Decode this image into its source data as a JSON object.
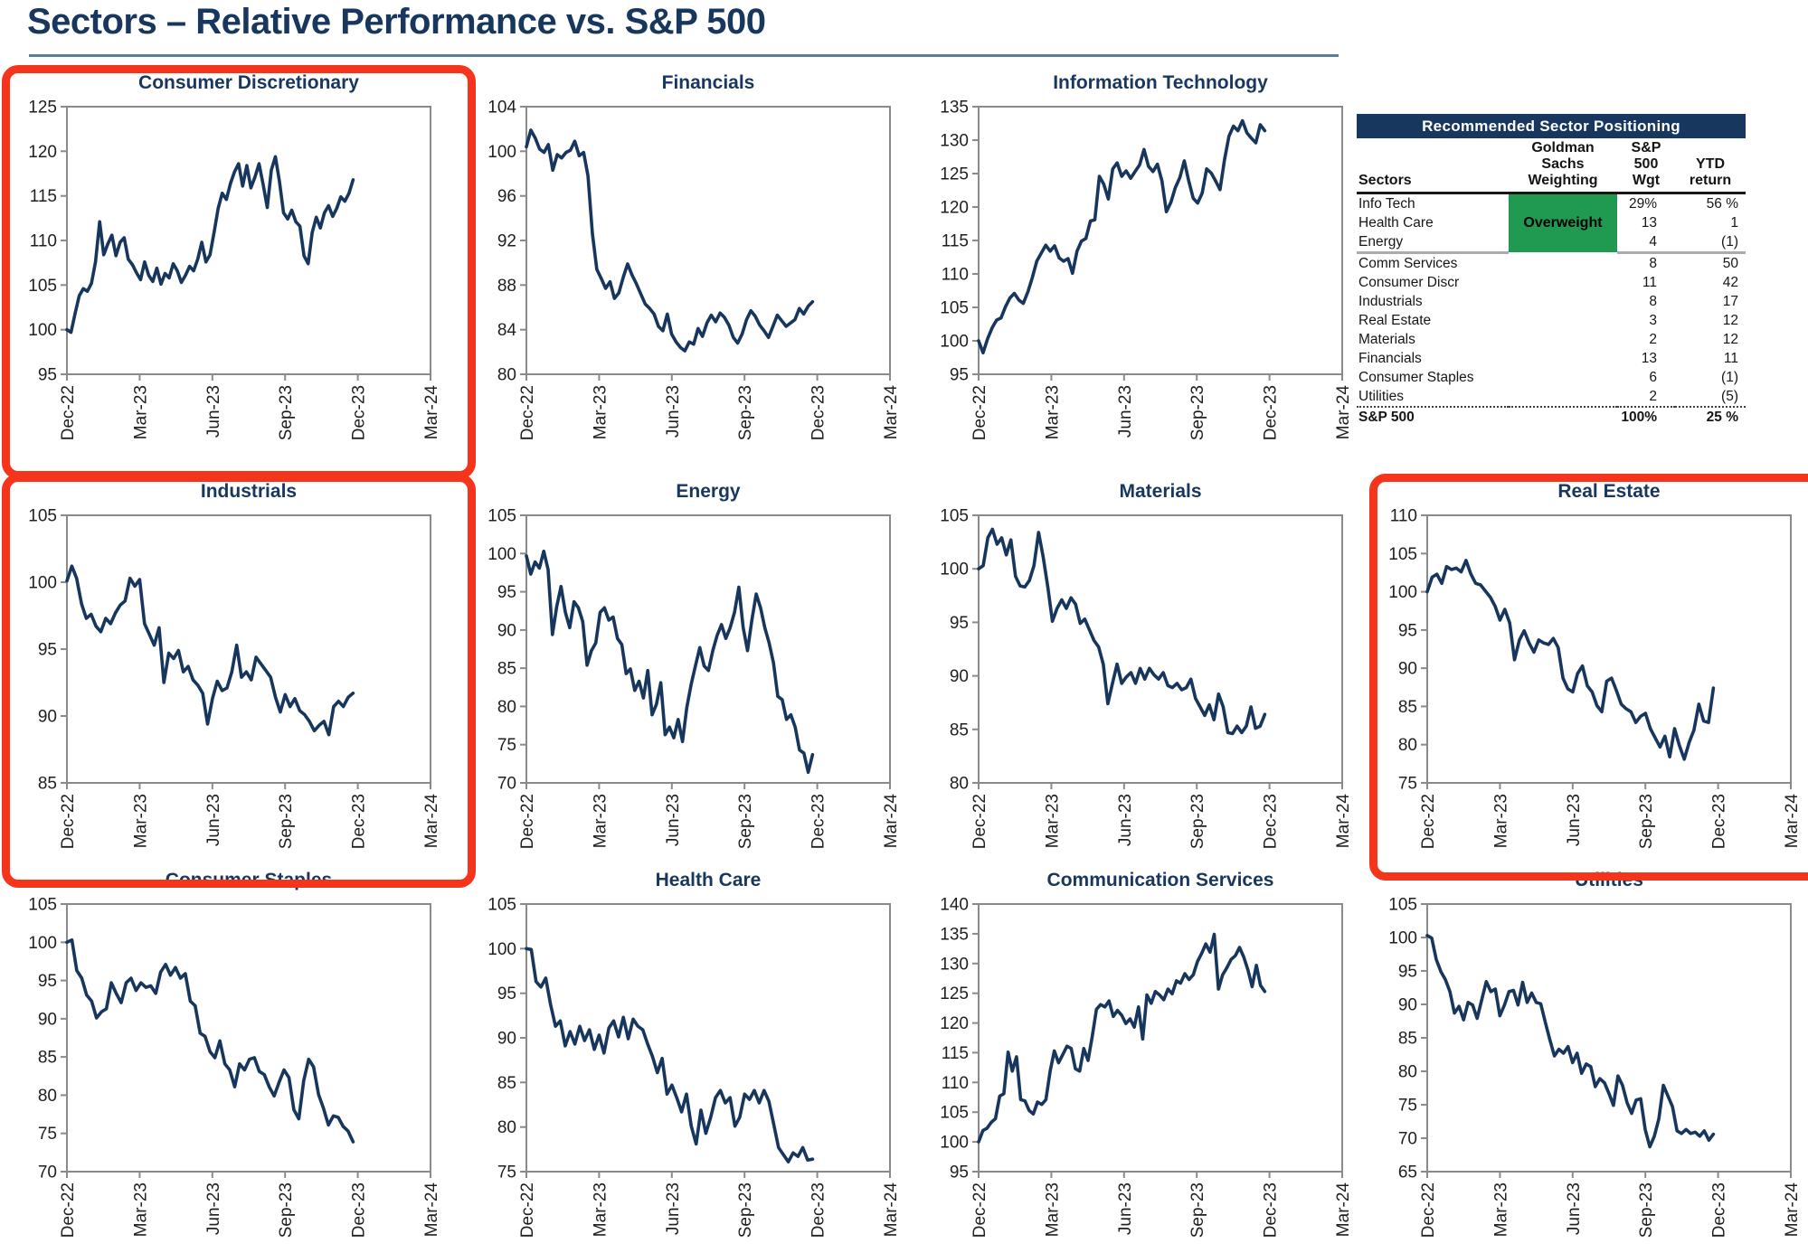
{
  "page": {
    "title": "Sectors – Relative Performance vs. S&P 500"
  },
  "colors": {
    "line": "#17365d",
    "chart_title": "#17375E",
    "axis": "#8a8a8a",
    "tick_label": "#1f1f1f",
    "red_box": "#F5341C",
    "table_header_bg": "#17375E",
    "overweight_green": "#1F9A50"
  },
  "axis": {
    "xticks": [
      "Dec-22",
      "Mar-23",
      "Jun-23",
      "Sep-23",
      "Dec-23",
      "Mar-24"
    ]
  },
  "table": {
    "title": "Recommended Sector Positioning",
    "col_headers": [
      "Sectors",
      "Goldman\nSachs\nWeighting",
      "S&P\n500\nWgt",
      "YTD\nreturn"
    ],
    "overweight_label": "Overweight",
    "rows": [
      {
        "sector": "Info Tech",
        "wgt": "29%",
        "ytd": "56 %"
      },
      {
        "sector": "Health Care",
        "wgt": "13",
        "ytd": "1"
      },
      {
        "sector": "Energy",
        "wgt": "4",
        "ytd": "(1)"
      },
      {
        "sector": "Comm Services",
        "wgt": "8",
        "ytd": "50"
      },
      {
        "sector": "Consumer Discr",
        "wgt": "11",
        "ytd": "42"
      },
      {
        "sector": "Industrials",
        "wgt": "8",
        "ytd": "17"
      },
      {
        "sector": "Real Estate",
        "wgt": "3",
        "ytd": "12"
      },
      {
        "sector": "Materials",
        "wgt": "2",
        "ytd": "12"
      },
      {
        "sector": "Financials",
        "wgt": "13",
        "ytd": "11"
      },
      {
        "sector": "Consumer Staples",
        "wgt": "6",
        "ytd": "(1)"
      },
      {
        "sector": "Utilities",
        "wgt": "2",
        "ytd": "(5)"
      }
    ],
    "footer_row": {
      "sector": "S&P 500",
      "wgt": "100%",
      "ytd": "25 %"
    }
  },
  "chart_data": [
    {
      "type": "line",
      "title": "Consumer Discretionary",
      "highlighted": true,
      "xlim": [
        "Dec-22",
        "Mar-24"
      ],
      "ylim": [
        95,
        125
      ],
      "ystep": 5,
      "x_end": 0.787,
      "values": [
        100,
        99.7,
        101.8,
        103.8,
        104.6,
        104.3,
        105.2,
        107.6,
        112.1,
        108.4,
        109.6,
        110.6,
        108.3,
        109.8,
        110.3,
        107.9,
        107.3,
        106.4,
        105.6,
        107.6,
        106.1,
        105.4,
        106.9,
        105.1,
        106.3,
        105.8,
        107.4,
        106.6,
        105.3,
        106.1,
        107.1,
        106.6,
        107.9,
        109.8,
        107.6,
        108.4,
        110.9,
        113.6,
        115.3,
        114.6,
        116.4,
        117.7,
        118.6,
        116.1,
        118.4,
        115.9,
        117.1,
        118.6,
        116.3,
        113.7,
        117.9,
        119.4,
        116.6,
        113.1,
        112.4,
        113.4,
        112.1,
        111.6,
        108.3,
        107.4,
        110.9,
        112.6,
        111.4,
        113.1,
        113.9,
        112.7,
        113.6,
        114.9,
        114.4,
        115.3,
        116.8
      ]
    },
    {
      "type": "line",
      "title": "Financials",
      "highlighted": false,
      "xlim": [
        "Dec-22",
        "Mar-24"
      ],
      "ylim": [
        80,
        104
      ],
      "ystep": 4,
      "x_end": 0.787,
      "values": [
        100.4,
        101.9,
        101.2,
        100.2,
        99.9,
        100.6,
        98.3,
        99.7,
        99.4,
        99.9,
        100.1,
        100.9,
        99.6,
        99.9,
        97.8,
        92.6,
        89.4,
        88.6,
        87.7,
        88.3,
        86.8,
        87.3,
        88.7,
        89.9,
        88.9,
        88.1,
        87.2,
        86.3,
        85.9,
        85.4,
        84.3,
        83.9,
        85.4,
        83.6,
        82.9,
        82.4,
        82.1,
        82.9,
        82.7,
        84.1,
        83.4,
        84.6,
        85.3,
        84.7,
        85.5,
        85.1,
        84.4,
        83.3,
        82.8,
        83.6,
        84.9,
        85.7,
        85.2,
        84.4,
        83.9,
        83.3,
        84.3,
        85.3,
        84.8,
        84.3,
        84.6,
        84.9,
        85.9,
        85.4,
        86.1,
        86.5
      ]
    },
    {
      "type": "line",
      "title": "Information Technology",
      "highlighted": false,
      "xlim": [
        "Dec-22",
        "Mar-24"
      ],
      "ylim": [
        95,
        135
      ],
      "ystep": 5,
      "x_end": 0.787,
      "values": [
        100,
        98.2,
        100.3,
        101.9,
        103.1,
        103.4,
        105.1,
        106.4,
        107.1,
        106.1,
        105.6,
        107.3,
        109.4,
        111.9,
        113.1,
        114.3,
        113.4,
        114.2,
        112.4,
        111.9,
        112.3,
        110.1,
        113.4,
        114.9,
        115.3,
        117.9,
        118.1,
        124.6,
        123.4,
        121.2,
        125.7,
        126.6,
        124.6,
        125.4,
        124.3,
        125.3,
        126.3,
        128.6,
        126.1,
        125.3,
        126.4,
        123.9,
        119.3,
        120.7,
        122.9,
        124.4,
        126.9,
        123.9,
        121.3,
        120.6,
        122.1,
        125.7,
        125.1,
        123.9,
        122.6,
        127.1,
        130.6,
        132.1,
        131.4,
        132.9,
        131.1,
        130.3,
        129.6,
        132.3,
        131.4
      ]
    },
    {
      "type": "line",
      "title": "Industrials",
      "highlighted": true,
      "xlim": [
        "Dec-22",
        "Mar-24"
      ],
      "ylim": [
        85,
        105
      ],
      "ystep": 5,
      "x_end": 0.787,
      "values": [
        100.1,
        101.2,
        100.3,
        98.4,
        97.3,
        97.6,
        96.7,
        96.3,
        97.3,
        96.9,
        97.7,
        98.3,
        98.6,
        100.3,
        99.7,
        100.2,
        96.9,
        96.1,
        95.3,
        96.6,
        92.5,
        94.7,
        94.3,
        94.9,
        93.3,
        93.7,
        92.7,
        92.3,
        91.7,
        89.4,
        91.3,
        92.6,
        91.9,
        92.1,
        93.3,
        95.3,
        92.9,
        93.3,
        92.7,
        94.4,
        93.9,
        93.4,
        92.9,
        91.4,
        90.3,
        91.6,
        90.7,
        91.3,
        90.4,
        90.1,
        89.6,
        88.9,
        89.3,
        89.6,
        88.6,
        90.7,
        91.1,
        90.7,
        91.4,
        91.7
      ]
    },
    {
      "type": "line",
      "title": "Energy",
      "highlighted": false,
      "xlim": [
        "Dec-22",
        "Mar-24"
      ],
      "ylim": [
        70,
        105
      ],
      "ystep": 5,
      "x_end": 0.787,
      "values": [
        99.7,
        97.3,
        98.9,
        98.1,
        100.3,
        97.9,
        89.4,
        93.1,
        95.7,
        92.3,
        90.3,
        93.7,
        92.9,
        91.1,
        85.4,
        87.3,
        88.3,
        92.3,
        92.9,
        91.3,
        91.7,
        88.9,
        88.1,
        84.3,
        84.9,
        82.1,
        83.3,
        81.1,
        84.7,
        78.9,
        80.3,
        83.1,
        76.3,
        77.3,
        75.9,
        78.3,
        75.4,
        79.9,
        82.9,
        85.3,
        87.7,
        85.3,
        84.7,
        87.3,
        89.3,
        90.7,
        88.9,
        90.3,
        92.3,
        95.6,
        90.3,
        87.3,
        91.3,
        94.7,
        92.9,
        90.3,
        88.3,
        85.7,
        81.3,
        80.9,
        78.3,
        78.9,
        77.3,
        74.3,
        73.9,
        71.4,
        73.7
      ]
    },
    {
      "type": "line",
      "title": "Materials",
      "highlighted": false,
      "xlim": [
        "Dec-22",
        "Mar-24"
      ],
      "ylim": [
        80,
        105
      ],
      "ystep": 5,
      "x_end": 0.787,
      "values": [
        100,
        100.3,
        102.9,
        103.7,
        102.3,
        102.9,
        101.3,
        102.7,
        99.3,
        98.4,
        98.3,
        98.9,
        100.3,
        103.4,
        101.1,
        98.3,
        95.1,
        96.3,
        97.1,
        96.3,
        97.3,
        96.7,
        94.9,
        95.3,
        94.3,
        93.3,
        92.7,
        91.1,
        87.4,
        89.3,
        91.1,
        89.3,
        89.9,
        90.3,
        89.3,
        90.7,
        89.7,
        90.7,
        90.1,
        89.7,
        90.3,
        89.1,
        88.9,
        89.3,
        88.7,
        88.9,
        89.7,
        87.9,
        87.1,
        86.3,
        87.3,
        85.9,
        88.3,
        87.1,
        84.7,
        84.6,
        85.3,
        84.7,
        85.3,
        87.1,
        85.1,
        85.3,
        86.4
      ]
    },
    {
      "type": "line",
      "title": "Real Estate",
      "highlighted": true,
      "xlim": [
        "Dec-22",
        "Mar-24"
      ],
      "ylim": [
        75,
        110
      ],
      "ystep": 5,
      "x_end": 0.787,
      "values": [
        100,
        101.9,
        102.3,
        101.1,
        103.3,
        102.9,
        103.1,
        102.6,
        104.1,
        102.3,
        101.1,
        100.9,
        100.1,
        99.3,
        98.1,
        96.3,
        97.7,
        95.9,
        91.1,
        93.7,
        94.9,
        93.3,
        92.1,
        93.7,
        93.3,
        93.1,
        93.9,
        92.7,
        88.7,
        87.3,
        86.9,
        89.3,
        90.3,
        87.7,
        86.9,
        85.1,
        84.3,
        88.3,
        88.7,
        87.1,
        85.3,
        84.7,
        84.3,
        82.9,
        83.7,
        84.1,
        82.1,
        80.9,
        79.7,
        81.1,
        78.4,
        82.1,
        79.9,
        78.1,
        80.3,
        81.9,
        85.3,
        83.1,
        82.9,
        87.4
      ]
    },
    {
      "type": "line",
      "title": "Consumer Staples",
      "highlighted": false,
      "xlim": [
        "Dec-22",
        "Mar-24"
      ],
      "ylim": [
        70,
        105
      ],
      "ystep": 5,
      "x_end": 0.787,
      "values": [
        100,
        100.3,
        96.3,
        95.3,
        93.1,
        92.3,
        90.1,
        90.9,
        91.3,
        94.7,
        93.3,
        92.1,
        94.7,
        95.3,
        93.7,
        94.7,
        94.1,
        94.3,
        93.3,
        96.1,
        97.1,
        95.7,
        96.7,
        95.3,
        95.9,
        92.3,
        91.7,
        88.1,
        87.7,
        85.7,
        84.9,
        87.1,
        84.1,
        83.3,
        81.1,
        84.1,
        83.3,
        84.7,
        84.9,
        83.1,
        82.7,
        81.1,
        79.9,
        81.7,
        83.3,
        82.3,
        78.1,
        76.9,
        81.9,
        84.7,
        83.7,
        80.1,
        78.3,
        76.1,
        77.3,
        77.1,
        75.9,
        75.3,
        73.9
      ]
    },
    {
      "type": "line",
      "title": "Health Care",
      "highlighted": false,
      "xlim": [
        "Dec-22",
        "Mar-24"
      ],
      "ylim": [
        75,
        105
      ],
      "ystep": 5,
      "x_end": 0.787,
      "values": [
        100,
        99.9,
        96.3,
        95.7,
        96.7,
        93.7,
        91.3,
        91.9,
        89.1,
        90.7,
        89.3,
        91.3,
        89.7,
        90.9,
        88.7,
        90.3,
        88.3,
        91.1,
        91.9,
        90.1,
        92.3,
        89.9,
        92.1,
        91.3,
        90.9,
        89.3,
        87.9,
        86.1,
        87.7,
        83.7,
        84.7,
        83.3,
        81.7,
        83.7,
        80.1,
        78.1,
        81.9,
        79.3,
        81.1,
        83.3,
        84.1,
        82.7,
        83.3,
        80.1,
        81.1,
        83.7,
        83.1,
        84.1,
        82.7,
        84.1,
        82.9,
        80.3,
        77.7,
        76.9,
        76.1,
        77.1,
        76.7,
        77.7,
        76.3,
        76.4
      ]
    },
    {
      "type": "line",
      "title": "Communication Services",
      "highlighted": false,
      "xlim": [
        "Dec-22",
        "Mar-24"
      ],
      "ylim": [
        95,
        140
      ],
      "ystep": 5,
      "x_end": 0.787,
      "values": [
        100,
        101.9,
        102.3,
        103.3,
        103.9,
        107.7,
        108.1,
        115.1,
        111.9,
        114.3,
        107.1,
        106.9,
        105.3,
        104.7,
        106.7,
        106.3,
        107.1,
        111.9,
        115.3,
        113.3,
        114.7,
        116.1,
        115.7,
        112.3,
        111.9,
        115.7,
        113.7,
        117.7,
        122.3,
        123.1,
        122.7,
        123.7,
        121.1,
        122.1,
        121.3,
        119.9,
        120.7,
        119.3,
        122.7,
        117.3,
        124.7,
        123.3,
        125.3,
        124.7,
        123.9,
        125.7,
        124.9,
        127.1,
        126.7,
        128.3,
        127.3,
        128.1,
        130.3,
        131.7,
        133.3,
        131.9,
        134.9,
        125.7,
        128.1,
        129.3,
        130.7,
        131.3,
        132.7,
        131.1,
        128.9,
        126.1,
        129.7,
        126.3,
        125.3
      ]
    },
    {
      "type": "line",
      "title": "Utilities",
      "highlighted": false,
      "xlim": [
        "Dec-22",
        "Mar-24"
      ],
      "ylim": [
        65,
        105
      ],
      "ystep": 5,
      "x_end": 0.787,
      "values": [
        100.3,
        99.9,
        96.7,
        94.9,
        93.7,
        91.9,
        88.7,
        89.7,
        87.7,
        90.3,
        89.9,
        87.9,
        90.7,
        93.4,
        91.9,
        92.3,
        88.3,
        89.9,
        91.9,
        92.1,
        89.9,
        93.3,
        90.3,
        91.7,
        90.3,
        90.1,
        87.3,
        84.7,
        82.3,
        83.3,
        82.7,
        83.7,
        81.3,
        82.7,
        79.7,
        81.1,
        80.7,
        77.7,
        78.9,
        78.3,
        76.7,
        74.9,
        79.3,
        77.9,
        75.3,
        73.7,
        75.7,
        75.9,
        71.3,
        68.7,
        70.3,
        72.9,
        77.9,
        76.3,
        74.7,
        71.1,
        70.7,
        71.3,
        70.7,
        70.9,
        70.3,
        71.1,
        69.7,
        70.6
      ]
    }
  ]
}
